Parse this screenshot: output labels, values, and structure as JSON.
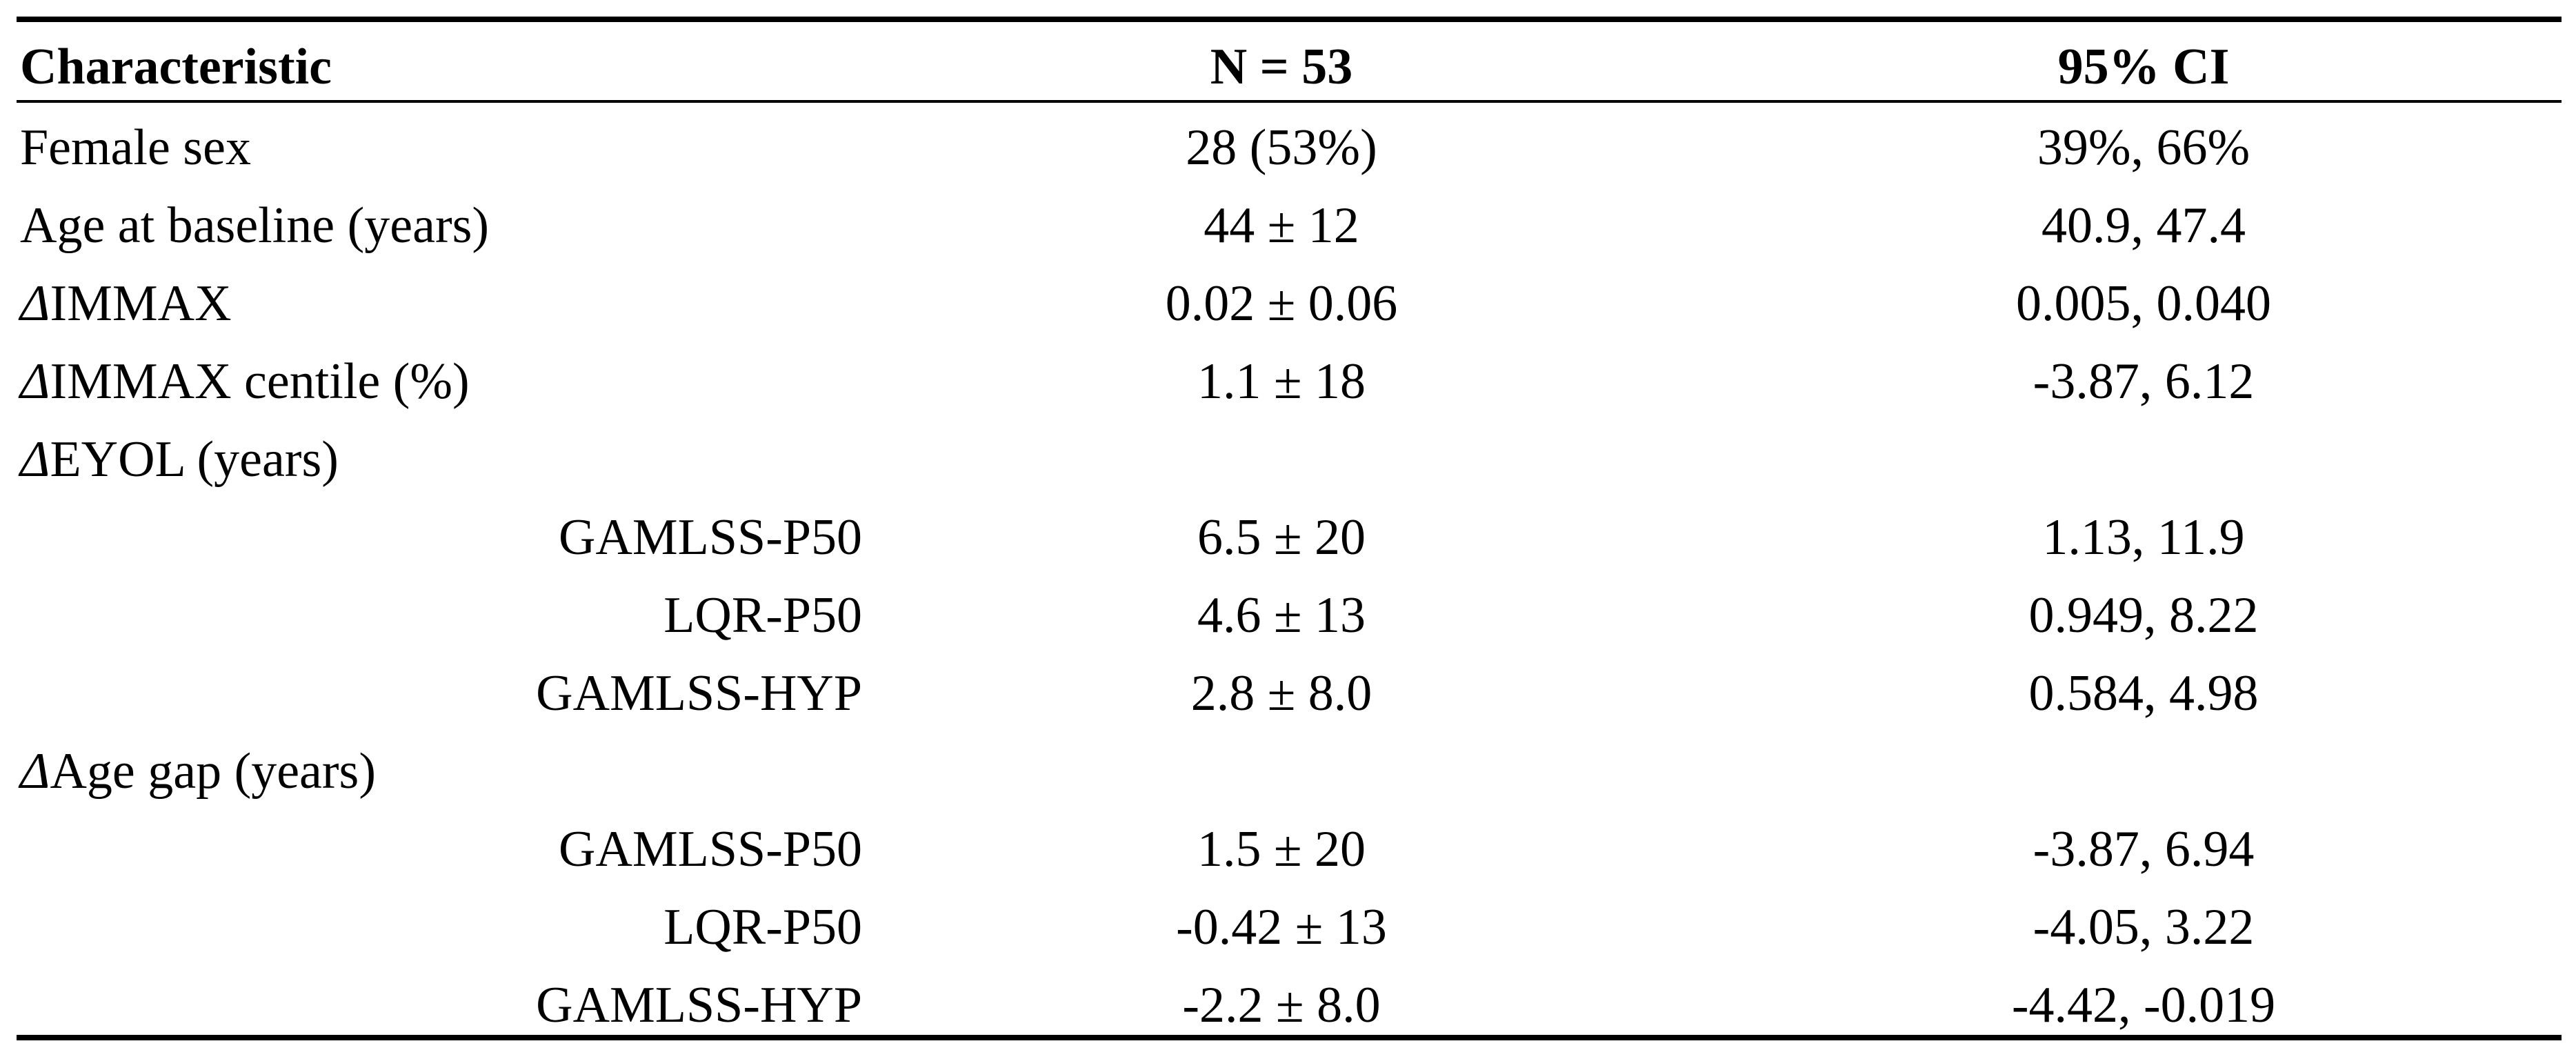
{
  "table": {
    "header": [
      "Characteristic",
      "N = 53",
      "95% CI"
    ],
    "rows": [
      {
        "label": "Female sex",
        "n": "28 (53%)",
        "ci": "39%, 66%"
      },
      {
        "label": "Age at baseline (years)",
        "n": "44 ± 12",
        "ci": "40.9, 47.4"
      },
      {
        "label": "ΔIMMAX",
        "n": "0.02 ± 0.06",
        "ci": "0.005, 0.040"
      },
      {
        "label": "ΔIMMAX centile (%)",
        "n": "1.1 ± 18",
        "ci": "-3.87, 6.12"
      },
      {
        "label": "ΔEYOL (years)",
        "subrows": [
          {
            "label": "GAMLSS-P50",
            "n": "6.5 ± 20",
            "ci": "1.13, 11.9"
          },
          {
            "label": "LQR-P50",
            "n": "4.6 ± 13",
            "ci": "0.949, 8.22"
          },
          {
            "label": "GAMLSS-HYP",
            "n": "2.8 ± 8.0",
            "ci": "0.584, 4.98"
          }
        ]
      },
      {
        "label": "ΔAge gap (years)",
        "subrows": [
          {
            "label": "GAMLSS-P50",
            "n": "1.5 ± 20",
            "ci": "-3.87, 6.94"
          },
          {
            "label": "LQR-P50",
            "n": "-0.42 ± 13",
            "ci": "-4.05, 3.22"
          },
          {
            "label": "GAMLSS-HYP",
            "n": "-2.2 ± 8.0",
            "ci": "-4.42, -0.019"
          }
        ]
      }
    ]
  }
}
